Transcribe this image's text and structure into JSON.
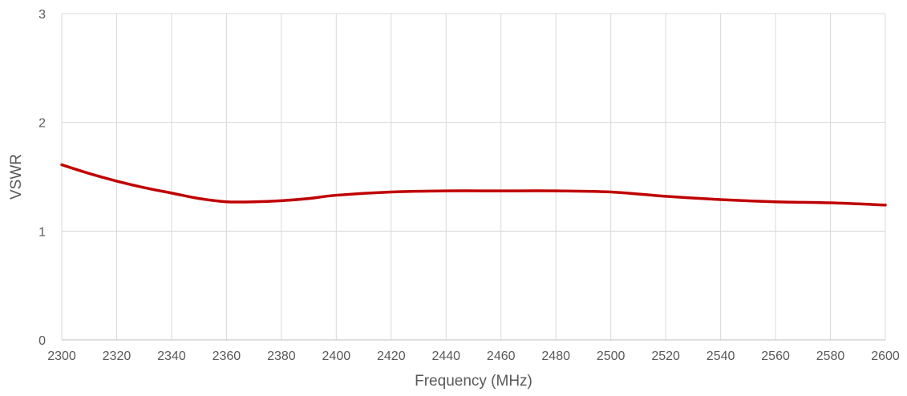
{
  "chart_data": {
    "type": "line",
    "title": "",
    "xlabel": "Frequency (MHz)",
    "ylabel": "VSWR",
    "xlim": [
      2300,
      2600
    ],
    "ylim": [
      0,
      3
    ],
    "x_ticks": [
      "2300",
      "2320",
      "2340",
      "2360",
      "2380",
      "2400",
      "2420",
      "2440",
      "2460",
      "2480",
      "2500",
      "2520",
      "2540",
      "2560",
      "2580",
      "2600"
    ],
    "y_ticks": [
      "0",
      "1",
      "2",
      "3"
    ],
    "grid": true,
    "legend": "none",
    "series": [
      {
        "color": "#C00000",
        "x": [
          2300,
          2310,
          2320,
          2330,
          2340,
          2350,
          2360,
          2370,
          2380,
          2390,
          2400,
          2420,
          2440,
          2460,
          2480,
          2500,
          2520,
          2540,
          2560,
          2580,
          2600
        ],
        "y": [
          1.61,
          1.53,
          1.46,
          1.4,
          1.35,
          1.3,
          1.27,
          1.27,
          1.28,
          1.3,
          1.33,
          1.36,
          1.37,
          1.37,
          1.37,
          1.36,
          1.32,
          1.29,
          1.27,
          1.26,
          1.24
        ]
      }
    ]
  }
}
